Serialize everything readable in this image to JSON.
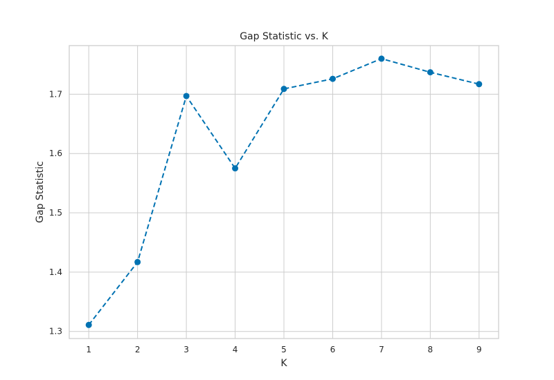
{
  "chart_data": {
    "type": "line",
    "title": "Gap Statistic vs. K",
    "xlabel": "K",
    "ylabel": "Gap Statistic",
    "x": [
      1,
      2,
      3,
      4,
      5,
      6,
      7,
      8,
      9
    ],
    "series": [
      {
        "values": [
          1.311,
          1.417,
          1.697,
          1.575,
          1.709,
          1.726,
          1.76,
          1.737,
          1.717
        ]
      }
    ],
    "xticks": [
      "1",
      "2",
      "3",
      "4",
      "5",
      "6",
      "7",
      "8",
      "9"
    ],
    "yticks": [
      "1.3",
      "1.4",
      "1.5",
      "1.6",
      "1.7"
    ],
    "xlim": [
      0.6,
      9.4
    ],
    "ylim": [
      1.288,
      1.782
    ],
    "grid": true,
    "line_style": "dashed",
    "marker": "circle",
    "color": "#0072b2"
  }
}
